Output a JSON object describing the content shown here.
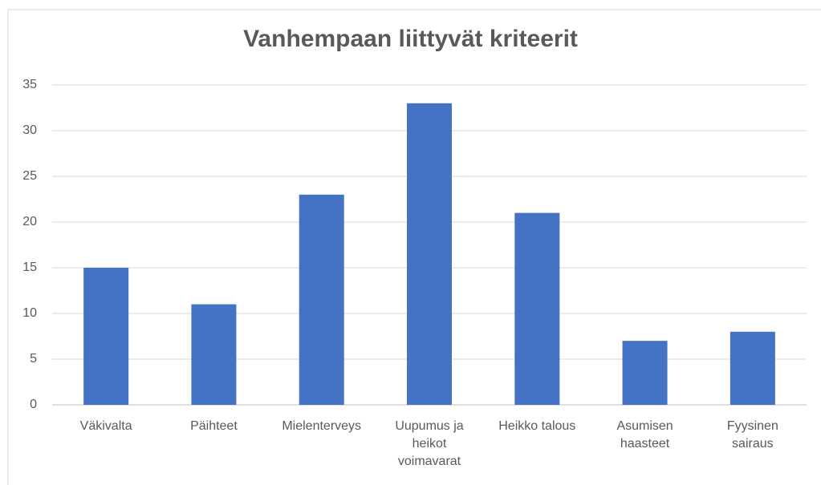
{
  "chart_data": {
    "type": "bar",
    "title": "Vanhempaan liittyvät kriteerit",
    "categories": [
      "Väkivalta",
      "Päihteet",
      "Mielenterveys",
      "Uupumus ja heikot voimavarat",
      "Heikko talous",
      "Asumisen haasteet",
      "Fyysinen sairaus"
    ],
    "values": [
      15,
      11,
      23,
      33,
      21,
      7,
      8
    ],
    "color": "#4472c4",
    "ylim": [
      0,
      35
    ],
    "yticks": [
      0,
      5,
      10,
      15,
      20,
      25,
      30,
      35
    ],
    "grid": true
  }
}
